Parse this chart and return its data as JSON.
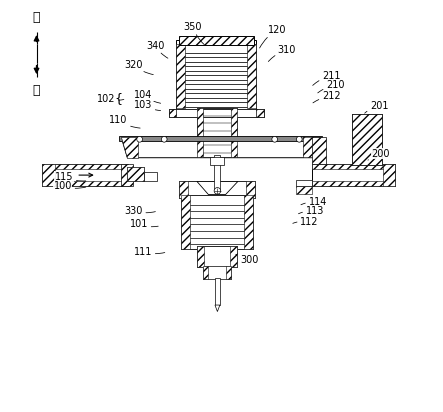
{
  "bg_color": "#ffffff",
  "line_color": "#000000",
  "figsize": [
    4.43,
    4.12
  ],
  "dpi": 100,
  "up_label": "上",
  "down_label": "下",
  "labels": [
    {
      "text": "350",
      "xt": 0.43,
      "yt": 0.938,
      "xa": 0.463,
      "ya": 0.89
    },
    {
      "text": "120",
      "xt": 0.635,
      "yt": 0.93,
      "xa": 0.59,
      "ya": 0.88
    },
    {
      "text": "340",
      "xt": 0.338,
      "yt": 0.892,
      "xa": 0.375,
      "ya": 0.858
    },
    {
      "text": "310",
      "xt": 0.66,
      "yt": 0.882,
      "xa": 0.61,
      "ya": 0.848
    },
    {
      "text": "320",
      "xt": 0.285,
      "yt": 0.845,
      "xa": 0.34,
      "ya": 0.82
    },
    {
      "text": "211",
      "xt": 0.768,
      "yt": 0.818,
      "xa": 0.718,
      "ya": 0.79
    },
    {
      "text": "210",
      "xt": 0.778,
      "yt": 0.795,
      "xa": 0.73,
      "ya": 0.772
    },
    {
      "text": "212",
      "xt": 0.768,
      "yt": 0.768,
      "xa": 0.718,
      "ya": 0.748
    },
    {
      "text": "104",
      "xt": 0.308,
      "yt": 0.772,
      "xa": 0.358,
      "ya": 0.75
    },
    {
      "text": "102",
      "xt": 0.218,
      "yt": 0.762,
      "xa": 0.268,
      "ya": 0.762
    },
    {
      "text": "103",
      "xt": 0.308,
      "yt": 0.748,
      "xa": 0.358,
      "ya": 0.733
    },
    {
      "text": "201",
      "xt": 0.885,
      "yt": 0.745,
      "xa": 0.845,
      "ya": 0.722
    },
    {
      "text": "110",
      "xt": 0.248,
      "yt": 0.71,
      "xa": 0.308,
      "ya": 0.69
    },
    {
      "text": "200",
      "xt": 0.888,
      "yt": 0.628,
      "xa": 0.858,
      "ya": 0.612
    },
    {
      "text": "115",
      "xt": 0.115,
      "yt": 0.572,
      "xa": 0.175,
      "ya": 0.562
    },
    {
      "text": "100",
      "xt": 0.112,
      "yt": 0.548,
      "xa": 0.175,
      "ya": 0.548
    },
    {
      "text": "330",
      "xt": 0.285,
      "yt": 0.488,
      "xa": 0.345,
      "ya": 0.488
    },
    {
      "text": "114",
      "xt": 0.735,
      "yt": 0.51,
      "xa": 0.688,
      "ya": 0.5
    },
    {
      "text": "113",
      "xt": 0.728,
      "yt": 0.488,
      "xa": 0.682,
      "ya": 0.478
    },
    {
      "text": "101",
      "xt": 0.298,
      "yt": 0.455,
      "xa": 0.352,
      "ya": 0.452
    },
    {
      "text": "112",
      "xt": 0.715,
      "yt": 0.462,
      "xa": 0.668,
      "ya": 0.455
    },
    {
      "text": "111",
      "xt": 0.308,
      "yt": 0.388,
      "xa": 0.368,
      "ya": 0.388
    },
    {
      "text": "300",
      "xt": 0.568,
      "yt": 0.368,
      "xa": 0.528,
      "ya": 0.382
    }
  ]
}
